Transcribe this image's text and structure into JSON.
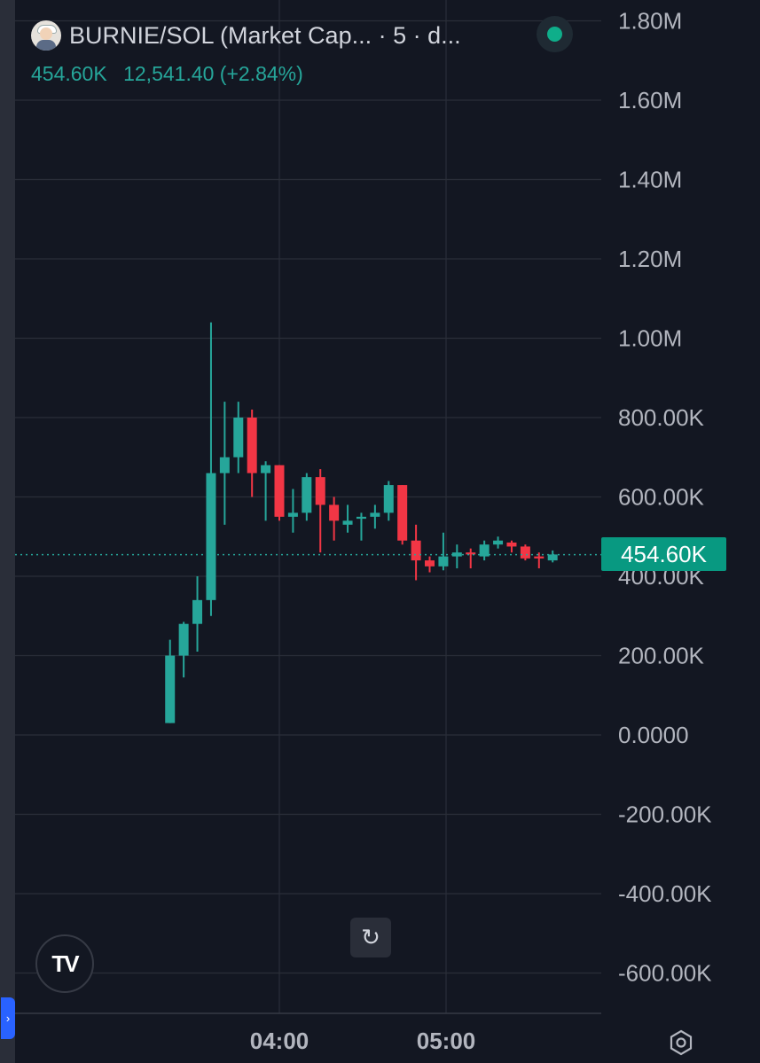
{
  "legend": {
    "symbol_title": "BURNIE/SOL (Market Cap... · 5 · d...",
    "last_value": "454.60K",
    "change": "12,541.40 (+2.84%)",
    "status": "market-open"
  },
  "price_badge": "454.60K",
  "edge_tab_icon": "chevron-right-icon",
  "reset_icon": "↻",
  "logo_text": "TV",
  "colors": {
    "background": "#131722",
    "grid": "#2a2e39",
    "up": "#26a69a",
    "down": "#f23645",
    "last_price_line": "#26a69a",
    "badge": "#089981",
    "axis_text": "#b2b5be"
  },
  "chart_data": {
    "type": "candlestick",
    "y_tick_labels": [
      "1.80M",
      "1.60M",
      "1.40M",
      "1.20M",
      "1.00M",
      "800.00K",
      "600.00K",
      "400.00K",
      "200.00K",
      "0.0000",
      "-200.00K",
      "-400.00K",
      "-600.00K"
    ],
    "y_ticks": [
      1800000,
      1600000,
      1400000,
      1200000,
      1000000,
      800000,
      600000,
      400000,
      200000,
      0,
      -200000,
      -400000,
      -600000
    ],
    "ylim": [
      -720000,
      1810000
    ],
    "x_tick_labels": [
      "04:00",
      "05:00"
    ],
    "x_ticks": [
      "03:59",
      "05:00"
    ],
    "grid": true,
    "last_price": 454600,
    "candles": [
      {
        "t": "03:19",
        "o": 30000,
        "h": 240000,
        "l": 30000,
        "c": 200000
      },
      {
        "t": "03:24",
        "o": 200000,
        "h": 285000,
        "l": 145000,
        "c": 280000
      },
      {
        "t": "03:29",
        "o": 280000,
        "h": 400000,
        "l": 210000,
        "c": 340000
      },
      {
        "t": "03:34",
        "o": 340000,
        "h": 1040000,
        "l": 300000,
        "c": 660000
      },
      {
        "t": "03:39",
        "o": 660000,
        "h": 840000,
        "l": 530000,
        "c": 700000
      },
      {
        "t": "03:44",
        "o": 700000,
        "h": 840000,
        "l": 660000,
        "c": 800000
      },
      {
        "t": "03:49",
        "o": 800000,
        "h": 820000,
        "l": 600000,
        "c": 660000
      },
      {
        "t": "03:54",
        "o": 660000,
        "h": 690000,
        "l": 540000,
        "c": 680000
      },
      {
        "t": "03:59",
        "o": 680000,
        "h": 680000,
        "l": 540000,
        "c": 550000
      },
      {
        "t": "04:04",
        "o": 550000,
        "h": 620000,
        "l": 510000,
        "c": 560000
      },
      {
        "t": "04:09",
        "o": 560000,
        "h": 660000,
        "l": 540000,
        "c": 650000
      },
      {
        "t": "04:14",
        "o": 650000,
        "h": 670000,
        "l": 460000,
        "c": 580000
      },
      {
        "t": "04:19",
        "o": 580000,
        "h": 600000,
        "l": 490000,
        "c": 540000
      },
      {
        "t": "04:24",
        "o": 530000,
        "h": 580000,
        "l": 510000,
        "c": 540000
      },
      {
        "t": "04:29",
        "o": 545000,
        "h": 560000,
        "l": 490000,
        "c": 550000
      },
      {
        "t": "04:34",
        "o": 550000,
        "h": 580000,
        "l": 520000,
        "c": 560000
      },
      {
        "t": "04:39",
        "o": 560000,
        "h": 640000,
        "l": 540000,
        "c": 630000
      },
      {
        "t": "04:44",
        "o": 630000,
        "h": 630000,
        "l": 480000,
        "c": 490000
      },
      {
        "t": "04:49",
        "o": 490000,
        "h": 530000,
        "l": 390000,
        "c": 440000
      },
      {
        "t": "04:54",
        "o": 440000,
        "h": 450000,
        "l": 410000,
        "c": 425000
      },
      {
        "t": "04:59",
        "o": 425000,
        "h": 510000,
        "l": 415000,
        "c": 450000
      },
      {
        "t": "05:04",
        "o": 450000,
        "h": 480000,
        "l": 420000,
        "c": 460000
      },
      {
        "t": "05:09",
        "o": 460000,
        "h": 470000,
        "l": 420000,
        "c": 455000
      },
      {
        "t": "05:14",
        "o": 450000,
        "h": 490000,
        "l": 440000,
        "c": 480000
      },
      {
        "t": "05:19",
        "o": 480000,
        "h": 500000,
        "l": 470000,
        "c": 490000
      },
      {
        "t": "05:24",
        "o": 485000,
        "h": 490000,
        "l": 460000,
        "c": 475000
      },
      {
        "t": "05:29",
        "o": 475000,
        "h": 480000,
        "l": 440000,
        "c": 445000
      },
      {
        "t": "05:34",
        "o": 450000,
        "h": 460000,
        "l": 420000,
        "c": 445000
      },
      {
        "t": "05:39",
        "o": 440000,
        "h": 465000,
        "l": 435000,
        "c": 455000
      }
    ]
  }
}
